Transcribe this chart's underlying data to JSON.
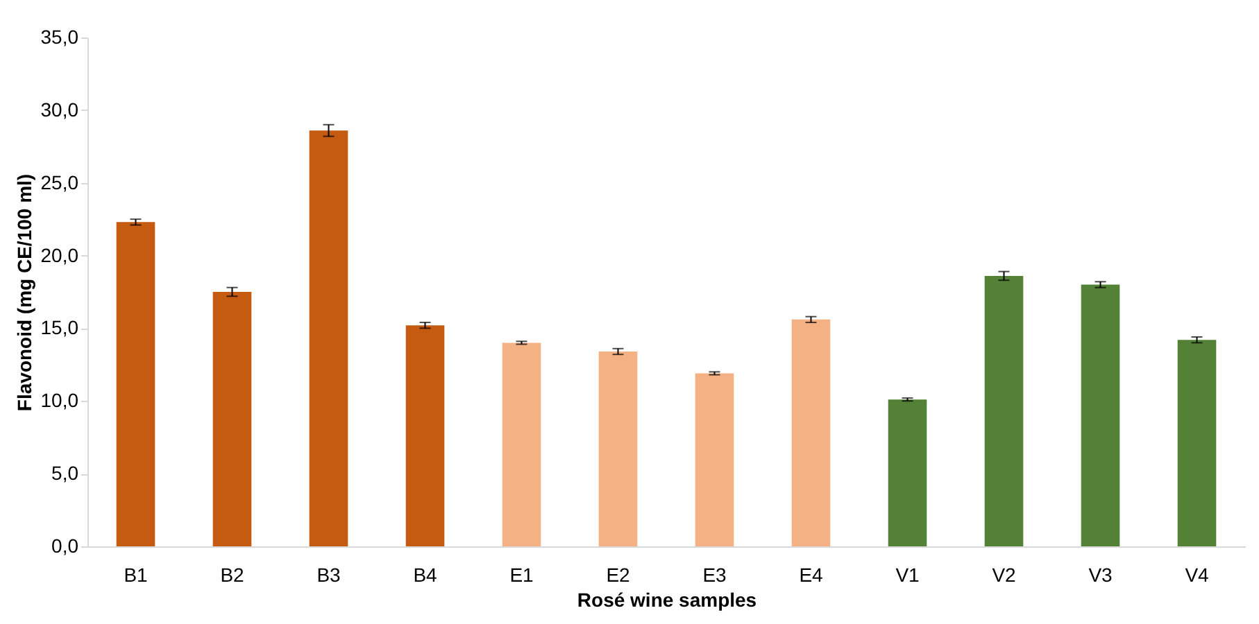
{
  "chart_data": {
    "type": "bar",
    "xlabel": "Rosé wine samples",
    "ylabel": "Flavonoid (mg CE/100 ml)",
    "categories": [
      "B1",
      "B2",
      "B3",
      "B4",
      "E1",
      "E2",
      "E3",
      "E4",
      "V1",
      "V2",
      "V3",
      "V4"
    ],
    "values": [
      22.3,
      17.5,
      28.6,
      15.2,
      14.0,
      13.4,
      11.9,
      15.6,
      10.1,
      18.6,
      18.0,
      14.2
    ],
    "errors": [
      0.2,
      0.3,
      0.4,
      0.2,
      0.1,
      0.2,
      0.1,
      0.2,
      0.1,
      0.3,
      0.2,
      0.2
    ],
    "colors": [
      "#c55a11",
      "#c55a11",
      "#c55a11",
      "#c55a11",
      "#f4b183",
      "#f4b183",
      "#f4b183",
      "#f4b183",
      "#538135",
      "#538135",
      "#538135",
      "#538135"
    ],
    "ylim": [
      0,
      35
    ],
    "yticks": [
      {
        "value": 0,
        "label": "0,0"
      },
      {
        "value": 5,
        "label": "5,0"
      },
      {
        "value": 10,
        "label": "10,0"
      },
      {
        "value": 15,
        "label": "15,0"
      },
      {
        "value": 20,
        "label": "20,0"
      },
      {
        "value": 25,
        "label": "25,0"
      },
      {
        "value": 30,
        "label": "30,0"
      },
      {
        "value": 35,
        "label": "35,0"
      }
    ],
    "grid": false
  }
}
